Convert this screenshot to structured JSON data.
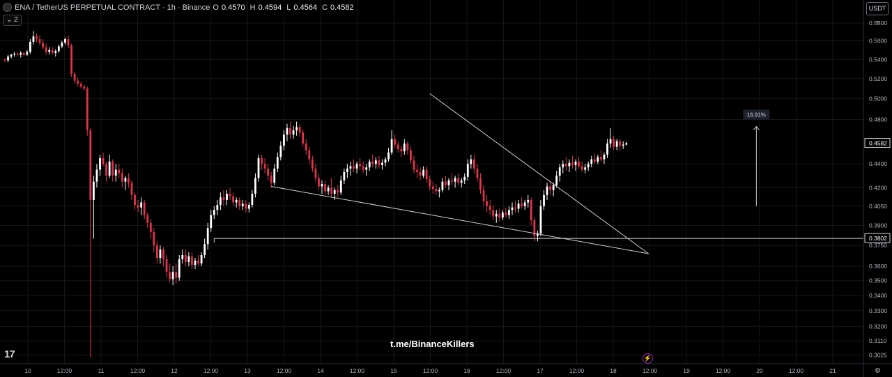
{
  "header": {
    "symbol": "ENA / TetherUS PERPETUAL CONTRACT · 1h · Binance",
    "ohlc": [
      {
        "label": "O",
        "value": "0.4570"
      },
      {
        "label": "H",
        "value": "0.4594"
      },
      {
        "label": "L",
        "value": "0.4564"
      },
      {
        "label": "C",
        "value": "0.4582"
      }
    ],
    "indicator_toggle": "⌄ 2",
    "currency": "USDT ⌄"
  },
  "watermark": "t.me/BinanceKillers",
  "logo": "17",
  "colors": {
    "background": "#000000",
    "up": "#ffffff",
    "down": "#e0334d",
    "line": "#cfcfcf",
    "axis_text": "#b2b5be",
    "grid": "#161616"
  },
  "icons": {
    "lightning": "lightning-icon",
    "settings": "gear-icon"
  },
  "chart_data": {
    "type": "candlestick",
    "price_scale": "log",
    "ylim": [
      0.299,
      0.592
    ],
    "y_ticks": [
      "0.5800",
      "0.5600",
      "0.5400",
      "0.5200",
      "0.5000",
      "0.4800",
      "0.4400",
      "0.4200",
      "0.4050",
      "0.3900",
      "0.3750",
      "0.3600",
      "0.3500",
      "0.3400",
      "0.3300",
      "0.3200",
      "0.3110",
      "0.3025"
    ],
    "x_ticks": [
      "10",
      "12:00",
      "11",
      "12:00",
      "12",
      "12:00",
      "13",
      "12:00",
      "14",
      "12:00",
      "15",
      "12:00",
      "16",
      "12:00",
      "17",
      "12:00",
      "18",
      "12:00",
      "19",
      "12:00",
      "20",
      "12:00",
      "21"
    ],
    "price_labels": [
      {
        "text": "0.4582",
        "value": 0.4582
      },
      {
        "text": "0.3802",
        "value": 0.3802
      }
    ],
    "candles": [
      [
        0.54,
        0.541,
        0.537,
        0.539
      ],
      [
        0.539,
        0.545,
        0.537,
        0.543
      ],
      [
        0.543,
        0.546,
        0.541,
        0.545
      ],
      [
        0.545,
        0.548,
        0.543,
        0.546
      ],
      [
        0.546,
        0.548,
        0.543,
        0.545
      ],
      [
        0.545,
        0.549,
        0.542,
        0.547
      ],
      [
        0.547,
        0.548,
        0.543,
        0.545
      ],
      [
        0.545,
        0.55,
        0.544,
        0.548
      ],
      [
        0.548,
        0.562,
        0.546,
        0.559
      ],
      [
        0.559,
        0.571,
        0.556,
        0.565
      ],
      [
        0.565,
        0.568,
        0.559,
        0.562
      ],
      [
        0.562,
        0.566,
        0.555,
        0.558
      ],
      [
        0.558,
        0.562,
        0.551,
        0.553
      ],
      [
        0.553,
        0.557,
        0.545,
        0.548
      ],
      [
        0.548,
        0.553,
        0.545,
        0.55
      ],
      [
        0.55,
        0.553,
        0.545,
        0.547
      ],
      [
        0.547,
        0.551,
        0.543,
        0.549
      ],
      [
        0.549,
        0.556,
        0.547,
        0.554
      ],
      [
        0.554,
        0.56,
        0.552,
        0.558
      ],
      [
        0.558,
        0.564,
        0.556,
        0.562
      ],
      [
        0.562,
        0.566,
        0.552,
        0.555
      ],
      [
        0.555,
        0.557,
        0.522,
        0.525
      ],
      [
        0.525,
        0.527,
        0.515,
        0.518
      ],
      [
        0.518,
        0.521,
        0.512,
        0.515
      ],
      [
        0.515,
        0.517,
        0.51,
        0.512
      ],
      [
        0.512,
        0.514,
        0.508,
        0.51
      ],
      [
        0.51,
        0.512,
        0.465,
        0.47
      ],
      [
        0.47,
        0.472,
        0.301,
        0.41
      ],
      [
        0.41,
        0.43,
        0.38,
        0.425
      ],
      [
        0.425,
        0.44,
        0.42,
        0.435
      ],
      [
        0.435,
        0.448,
        0.43,
        0.445
      ],
      [
        0.445,
        0.45,
        0.438,
        0.44
      ],
      [
        0.44,
        0.442,
        0.425,
        0.43
      ],
      [
        0.43,
        0.448,
        0.428,
        0.442
      ],
      [
        0.442,
        0.444,
        0.425,
        0.43
      ],
      [
        0.43,
        0.44,
        0.425,
        0.435
      ],
      [
        0.435,
        0.44,
        0.428,
        0.432
      ],
      [
        0.432,
        0.436,
        0.42,
        0.425
      ],
      [
        0.425,
        0.43,
        0.418,
        0.428
      ],
      [
        0.428,
        0.432,
        0.42,
        0.424
      ],
      [
        0.424,
        0.426,
        0.41,
        0.414
      ],
      [
        0.414,
        0.416,
        0.402,
        0.406
      ],
      [
        0.406,
        0.41,
        0.4,
        0.404
      ],
      [
        0.404,
        0.412,
        0.398,
        0.408
      ],
      [
        0.408,
        0.41,
        0.395,
        0.398
      ],
      [
        0.398,
        0.4,
        0.388,
        0.392
      ],
      [
        0.392,
        0.395,
        0.38,
        0.385
      ],
      [
        0.385,
        0.388,
        0.37,
        0.375
      ],
      [
        0.375,
        0.378,
        0.362,
        0.366
      ],
      [
        0.366,
        0.375,
        0.362,
        0.372
      ],
      [
        0.372,
        0.374,
        0.36,
        0.365
      ],
      [
        0.365,
        0.368,
        0.352,
        0.356
      ],
      [
        0.356,
        0.362,
        0.349,
        0.351
      ],
      [
        0.351,
        0.36,
        0.347,
        0.356
      ],
      [
        0.356,
        0.362,
        0.348,
        0.352
      ],
      [
        0.352,
        0.368,
        0.35,
        0.365
      ],
      [
        0.365,
        0.372,
        0.362,
        0.368
      ],
      [
        0.368,
        0.372,
        0.36,
        0.363
      ],
      [
        0.363,
        0.37,
        0.36,
        0.367
      ],
      [
        0.367,
        0.37,
        0.358,
        0.361
      ],
      [
        0.361,
        0.366,
        0.358,
        0.364
      ],
      [
        0.364,
        0.368,
        0.36,
        0.362
      ],
      [
        0.362,
        0.37,
        0.36,
        0.368
      ],
      [
        0.368,
        0.38,
        0.366,
        0.376
      ],
      [
        0.376,
        0.392,
        0.372,
        0.388
      ],
      [
        0.388,
        0.402,
        0.385,
        0.398
      ],
      [
        0.398,
        0.405,
        0.395,
        0.402
      ],
      [
        0.402,
        0.41,
        0.398,
        0.406
      ],
      [
        0.406,
        0.416,
        0.402,
        0.412
      ],
      [
        0.412,
        0.418,
        0.405,
        0.41
      ],
      [
        0.41,
        0.418,
        0.406,
        0.415
      ],
      [
        0.415,
        0.42,
        0.41,
        0.413
      ],
      [
        0.413,
        0.416,
        0.405,
        0.408
      ],
      [
        0.408,
        0.412,
        0.404,
        0.41
      ],
      [
        0.41,
        0.412,
        0.402,
        0.405
      ],
      [
        0.405,
        0.41,
        0.402,
        0.407
      ],
      [
        0.407,
        0.41,
        0.4,
        0.403
      ],
      [
        0.403,
        0.408,
        0.4,
        0.406
      ],
      [
        0.406,
        0.418,
        0.404,
        0.415
      ],
      [
        0.415,
        0.432,
        0.412,
        0.428
      ],
      [
        0.428,
        0.448,
        0.425,
        0.445
      ],
      [
        0.445,
        0.448,
        0.435,
        0.44
      ],
      [
        0.44,
        0.445,
        0.432,
        0.436
      ],
      [
        0.436,
        0.44,
        0.426,
        0.43
      ],
      [
        0.43,
        0.433,
        0.42,
        0.424
      ],
      [
        0.424,
        0.44,
        0.422,
        0.436
      ],
      [
        0.436,
        0.45,
        0.433,
        0.446
      ],
      [
        0.446,
        0.46,
        0.443,
        0.456
      ],
      [
        0.456,
        0.47,
        0.452,
        0.466
      ],
      [
        0.466,
        0.476,
        0.46,
        0.472
      ],
      [
        0.472,
        0.478,
        0.462,
        0.466
      ],
      [
        0.466,
        0.474,
        0.462,
        0.47
      ],
      [
        0.47,
        0.478,
        0.465,
        0.473
      ],
      [
        0.473,
        0.476,
        0.464,
        0.468
      ],
      [
        0.468,
        0.471,
        0.455,
        0.458
      ],
      [
        0.458,
        0.462,
        0.448,
        0.452
      ],
      [
        0.452,
        0.455,
        0.44,
        0.444
      ],
      [
        0.444,
        0.447,
        0.433,
        0.436
      ],
      [
        0.436,
        0.44,
        0.425,
        0.428
      ],
      [
        0.428,
        0.431,
        0.418,
        0.421
      ],
      [
        0.421,
        0.426,
        0.415,
        0.423
      ],
      [
        0.423,
        0.426,
        0.414,
        0.417
      ],
      [
        0.417,
        0.422,
        0.414,
        0.42
      ],
      [
        0.42,
        0.428,
        0.412,
        0.415
      ],
      [
        0.415,
        0.42,
        0.41,
        0.418
      ],
      [
        0.418,
        0.422,
        0.412,
        0.416
      ],
      [
        0.416,
        0.43,
        0.414,
        0.426
      ],
      [
        0.426,
        0.436,
        0.423,
        0.433
      ],
      [
        0.433,
        0.44,
        0.428,
        0.436
      ],
      [
        0.436,
        0.442,
        0.43,
        0.438
      ],
      [
        0.438,
        0.444,
        0.433,
        0.436
      ],
      [
        0.436,
        0.442,
        0.432,
        0.44
      ],
      [
        0.44,
        0.445,
        0.435,
        0.438
      ],
      [
        0.438,
        0.442,
        0.432,
        0.435
      ],
      [
        0.435,
        0.44,
        0.43,
        0.437
      ],
      [
        0.437,
        0.444,
        0.434,
        0.442
      ],
      [
        0.442,
        0.448,
        0.437,
        0.44
      ],
      [
        0.44,
        0.446,
        0.436,
        0.443
      ],
      [
        0.443,
        0.447,
        0.436,
        0.439
      ],
      [
        0.439,
        0.444,
        0.435,
        0.441
      ],
      [
        0.441,
        0.446,
        0.438,
        0.444
      ],
      [
        0.444,
        0.454,
        0.442,
        0.45
      ],
      [
        0.45,
        0.47,
        0.448,
        0.462
      ],
      [
        0.462,
        0.466,
        0.454,
        0.457
      ],
      [
        0.457,
        0.46,
        0.45,
        0.453
      ],
      [
        0.453,
        0.456,
        0.446,
        0.451
      ],
      [
        0.451,
        0.462,
        0.448,
        0.458
      ],
      [
        0.458,
        0.46,
        0.448,
        0.452
      ],
      [
        0.452,
        0.455,
        0.44,
        0.443
      ],
      [
        0.443,
        0.447,
        0.432,
        0.435
      ],
      [
        0.435,
        0.44,
        0.428,
        0.433
      ],
      [
        0.433,
        0.437,
        0.426,
        0.43
      ],
      [
        0.43,
        0.438,
        0.428,
        0.435
      ],
      [
        0.435,
        0.438,
        0.424,
        0.427
      ],
      [
        0.427,
        0.43,
        0.418,
        0.421
      ],
      [
        0.421,
        0.425,
        0.415,
        0.419
      ],
      [
        0.419,
        0.423,
        0.414,
        0.417
      ],
      [
        0.417,
        0.42,
        0.412,
        0.418
      ],
      [
        0.418,
        0.428,
        0.416,
        0.425
      ],
      [
        0.425,
        0.43,
        0.42,
        0.422
      ],
      [
        0.422,
        0.428,
        0.418,
        0.426
      ],
      [
        0.426,
        0.432,
        0.422,
        0.425
      ],
      [
        0.425,
        0.43,
        0.42,
        0.428
      ],
      [
        0.428,
        0.432,
        0.422,
        0.424
      ],
      [
        0.424,
        0.428,
        0.42,
        0.426
      ],
      [
        0.426,
        0.432,
        0.423,
        0.429
      ],
      [
        0.429,
        0.444,
        0.426,
        0.44
      ],
      [
        0.44,
        0.448,
        0.436,
        0.444
      ],
      [
        0.444,
        0.448,
        0.432,
        0.436
      ],
      [
        0.436,
        0.44,
        0.425,
        0.428
      ],
      [
        0.428,
        0.432,
        0.415,
        0.418
      ],
      [
        0.418,
        0.422,
        0.405,
        0.409
      ],
      [
        0.409,
        0.414,
        0.4,
        0.405
      ],
      [
        0.405,
        0.41,
        0.398,
        0.402
      ],
      [
        0.402,
        0.406,
        0.394,
        0.397
      ],
      [
        0.397,
        0.402,
        0.392,
        0.399
      ],
      [
        0.399,
        0.403,
        0.393,
        0.396
      ],
      [
        0.396,
        0.402,
        0.394,
        0.4
      ],
      [
        0.4,
        0.404,
        0.396,
        0.398
      ],
      [
        0.398,
        0.405,
        0.395,
        0.402
      ],
      [
        0.402,
        0.408,
        0.398,
        0.404
      ],
      [
        0.404,
        0.409,
        0.4,
        0.403
      ],
      [
        0.403,
        0.41,
        0.4,
        0.407
      ],
      [
        0.407,
        0.412,
        0.403,
        0.405
      ],
      [
        0.405,
        0.41,
        0.402,
        0.408
      ],
      [
        0.408,
        0.414,
        0.404,
        0.41
      ],
      [
        0.41,
        0.412,
        0.39,
        0.394
      ],
      [
        0.394,
        0.396,
        0.378,
        0.382
      ],
      [
        0.382,
        0.386,
        0.378,
        0.384
      ],
      [
        0.384,
        0.41,
        0.382,
        0.405
      ],
      [
        0.405,
        0.418,
        0.402,
        0.414
      ],
      [
        0.414,
        0.424,
        0.41,
        0.421
      ],
      [
        0.421,
        0.426,
        0.414,
        0.418
      ],
      [
        0.418,
        0.424,
        0.413,
        0.422
      ],
      [
        0.422,
        0.434,
        0.42,
        0.43
      ],
      [
        0.43,
        0.44,
        0.425,
        0.437
      ],
      [
        0.437,
        0.443,
        0.432,
        0.44
      ],
      [
        0.44,
        0.446,
        0.434,
        0.438
      ],
      [
        0.438,
        0.444,
        0.433,
        0.441
      ],
      [
        0.441,
        0.447,
        0.436,
        0.439
      ],
      [
        0.439,
        0.444,
        0.434,
        0.442
      ],
      [
        0.442,
        0.446,
        0.436,
        0.438
      ],
      [
        0.438,
        0.442,
        0.433,
        0.435
      ],
      [
        0.435,
        0.44,
        0.432,
        0.437
      ],
      [
        0.437,
        0.442,
        0.434,
        0.44
      ],
      [
        0.44,
        0.447,
        0.437,
        0.444
      ],
      [
        0.444,
        0.449,
        0.44,
        0.442
      ],
      [
        0.442,
        0.448,
        0.44,
        0.446
      ],
      [
        0.446,
        0.452,
        0.442,
        0.444
      ],
      [
        0.444,
        0.45,
        0.44,
        0.448
      ],
      [
        0.448,
        0.462,
        0.445,
        0.458
      ],
      [
        0.458,
        0.472,
        0.454,
        0.462
      ],
      [
        0.462,
        0.465,
        0.452,
        0.455
      ],
      [
        0.455,
        0.462,
        0.452,
        0.46
      ],
      [
        0.46,
        0.462,
        0.452,
        0.456
      ],
      [
        0.456,
        0.46,
        0.453,
        0.457
      ],
      [
        0.457,
        0.4594,
        0.4564,
        0.4582
      ]
    ],
    "drawings": {
      "horizontal_level": 0.3802,
      "descending_trendline": {
        "from_candle": 134,
        "from_price": 0.505,
        "to_candle": 203,
        "to_price": 0.369
      },
      "lower_trendline": {
        "from_candle": 84,
        "from_price": 0.421,
        "to_candle": 203,
        "to_price": 0.369
      },
      "measure_arrow": {
        "label": "16.91%",
        "from_price": 0.405,
        "to_price": 0.4735,
        "at_candle": 237
      }
    }
  }
}
